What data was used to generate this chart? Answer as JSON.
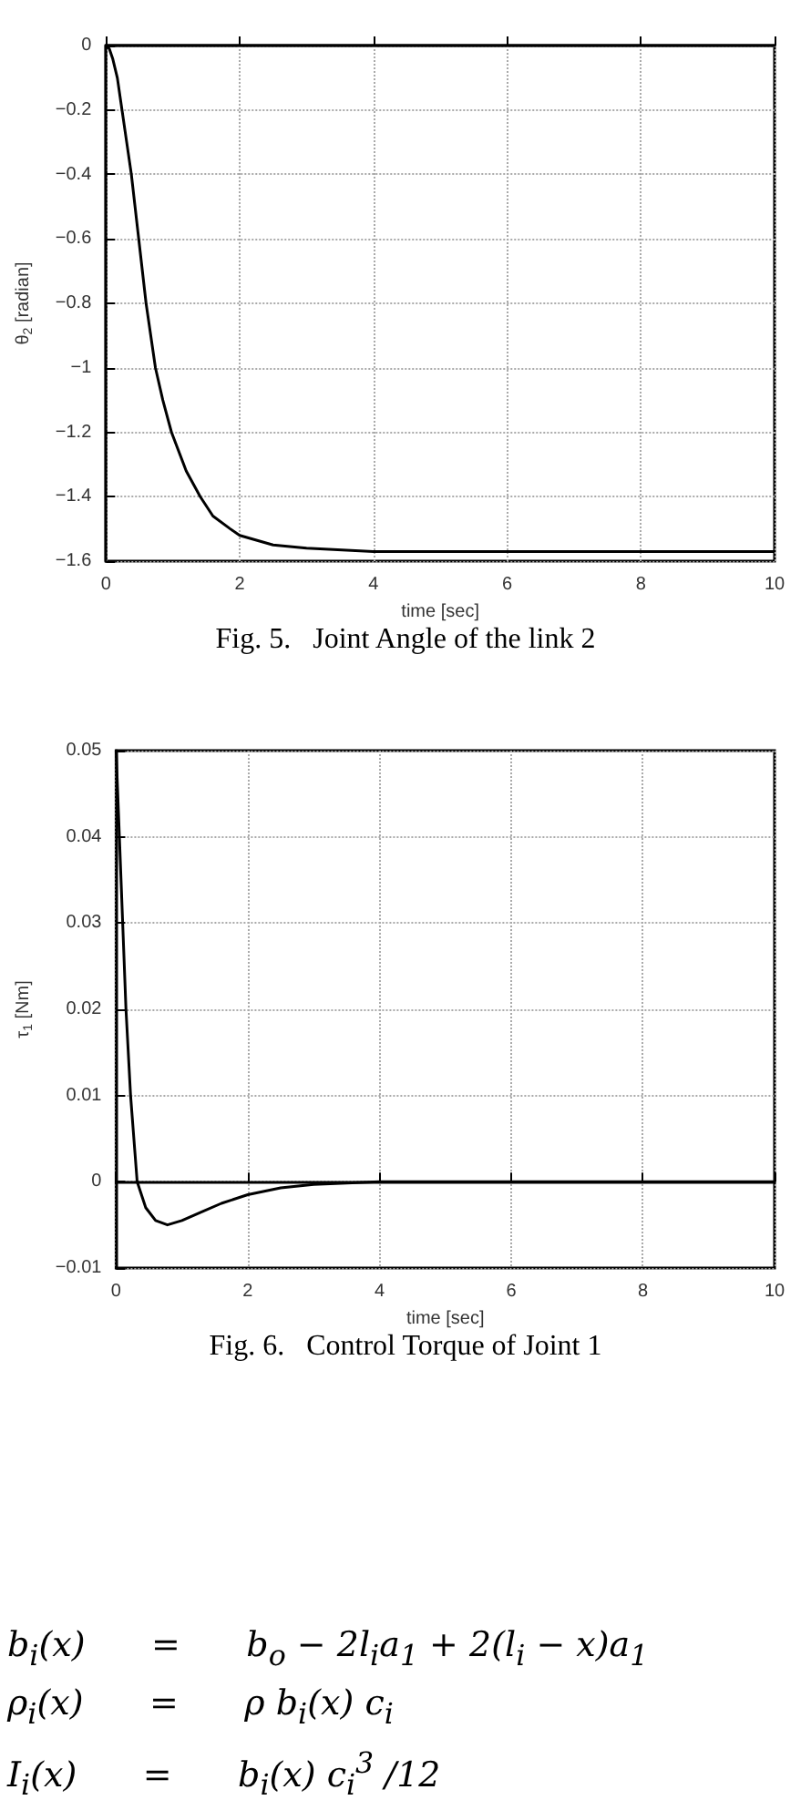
{
  "chart_data": [
    {
      "type": "line",
      "title": "Fig. 5.   Joint Angle of the link 2",
      "xlabel": "time [sec]",
      "ylabel": "θ$_{2}$ [radian]",
      "x": [
        0,
        0.05,
        0.1,
        0.17,
        0.24,
        0.31,
        0.38,
        0.49,
        0.6,
        0.74,
        0.85,
        0.98,
        1.2,
        1.41,
        1.6,
        1.86,
        2,
        2.5,
        3,
        4,
        5,
        6,
        7,
        8,
        9,
        10
      ],
      "series": [
        {
          "color": "#000000",
          "values": [
            0,
            -0.01,
            -0.04,
            -0.1,
            -0.2,
            -0.3,
            -0.4,
            -0.6,
            -0.8,
            -1.0,
            -1.1,
            -1.2,
            -1.32,
            -1.4,
            -1.46,
            -1.5,
            -1.52,
            -1.55,
            -1.56,
            -1.57,
            -1.57,
            -1.57,
            -1.57,
            -1.57,
            -1.57,
            -1.57
          ]
        }
      ],
      "xlim": [
        0,
        10
      ],
      "xticks": [
        0,
        2,
        4,
        6,
        8,
        10
      ],
      "ylim": [
        -1.6,
        0
      ],
      "yticks": [
        -1.6,
        -1.4,
        -1.2,
        -1,
        -0.8,
        -0.6,
        -0.4,
        -0.2,
        0
      ],
      "grid": true,
      "marker": "none",
      "line_style": "solid"
    },
    {
      "type": "line",
      "title": "Fig. 6.   Control Torque of Joint 1",
      "xlabel": "time [sec]",
      "ylabel": "τ$_{1}$ [Nm]",
      "x": [
        0,
        0.05,
        0.1,
        0.15,
        0.22,
        0.32,
        0.45,
        0.6,
        0.78,
        1,
        1.3,
        1.6,
        2,
        2.5,
        3,
        4,
        5,
        6,
        7,
        8,
        9,
        10
      ],
      "series": [
        {
          "color": "#000000",
          "values": [
            0.05,
            0.04,
            0.03,
            0.02,
            0.01,
            0,
            -0.003,
            -0.0045,
            -0.005,
            -0.0045,
            -0.0035,
            -0.0025,
            -0.0015,
            -0.0007,
            -0.0003,
            0,
            0,
            0,
            0,
            0,
            0,
            0
          ]
        }
      ],
      "xlim": [
        0,
        10
      ],
      "xticks": [
        0,
        2,
        4,
        6,
        8,
        10
      ],
      "ylim": [
        -0.01,
        0.05
      ],
      "yticks": [
        -0.01,
        0,
        0.01,
        0.02,
        0.03,
        0.04,
        0.05
      ],
      "grid": true,
      "marker": "none",
      "line_style": "solid",
      "annotations": [
        "b$_{i}$(x)   =   b$_{o}$ − 2l$_{i}$a$_{1}$ + 2(l$_{i}$ − x)a$_{1}$",
        "ρ$_{i}$(x)   =   ρ b$_{i}$(x) c$_{i}$",
        "I$_{i}$(x)   =   b$_{i}$(x) c$_{i}$$^{3}$ /12"
      ]
    }
  ]
}
